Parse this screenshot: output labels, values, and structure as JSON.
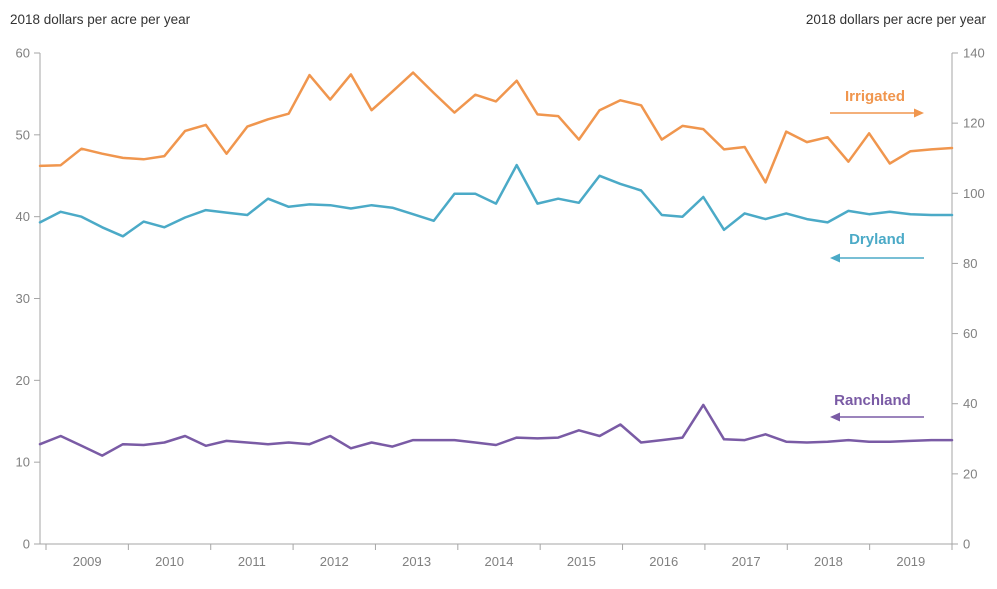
{
  "left_axis": {
    "title": "2018 dollars per acre per year",
    "ticks": [
      0,
      10,
      20,
      30,
      40,
      50,
      60
    ],
    "min": 0,
    "max": 60
  },
  "right_axis": {
    "title": "2018 dollars per acre per year",
    "ticks": [
      0,
      20,
      40,
      60,
      80,
      100,
      120,
      140
    ],
    "min": 0,
    "max": 140
  },
  "x_axis": {
    "year_labels": [
      "2009",
      "2010",
      "2011",
      "2012",
      "2013",
      "2014",
      "2015",
      "2016",
      "2017",
      "2018",
      "2019"
    ]
  },
  "colors": {
    "irrigated": "#F0964E",
    "dryland": "#4BAAC7",
    "ranchland": "#7A5BA5",
    "axis_line": "#A6A6A6",
    "tick_label": "#808080",
    "title_text": "#333333"
  },
  "chart_data": {
    "type": "line",
    "periodicity": "quarterly",
    "x_range": [
      "2009-Q1",
      "2020-Q1"
    ],
    "grid": false,
    "legend_position": "inline-arrow-annotations",
    "series": [
      {
        "name": "Irrigated",
        "axis": "right",
        "color": "#F0964E",
        "arrow_direction": "right",
        "values": [
          107.8,
          108.0,
          112.7,
          111.3,
          110.1,
          109.7,
          110.6,
          117.8,
          119.5,
          111.3,
          119.0,
          121.1,
          122.7,
          133.7,
          126.7,
          133.9,
          123.7,
          129.0,
          134.4,
          128.6,
          123.0,
          128.1,
          126.2,
          132.1,
          122.5,
          122.0,
          115.3,
          123.7,
          126.5,
          125.1,
          115.3,
          119.2,
          118.3,
          112.5,
          113.2,
          103.1,
          117.6,
          114.6,
          116.0,
          109.0,
          117.1,
          108.5,
          112.0,
          112.5,
          112.9
        ]
      },
      {
        "name": "Dryland",
        "axis": "left",
        "color": "#4BAAC7",
        "arrow_direction": "left",
        "values": [
          39.3,
          40.6,
          40.0,
          38.7,
          37.6,
          39.4,
          38.7,
          39.9,
          40.8,
          40.5,
          40.2,
          42.2,
          41.2,
          41.5,
          41.4,
          41.0,
          41.4,
          41.1,
          40.3,
          39.5,
          42.8,
          42.8,
          41.6,
          46.3,
          41.6,
          42.2,
          41.7,
          45.0,
          44.0,
          43.2,
          40.2,
          40.0,
          42.4,
          38.4,
          40.4,
          39.7,
          40.4,
          39.7,
          39.3,
          40.7,
          40.3,
          40.6,
          40.3,
          40.2,
          40.2
        ]
      },
      {
        "name": "Ranchland",
        "axis": "left",
        "color": "#7A5BA5",
        "arrow_direction": "left",
        "values": [
          12.2,
          13.2,
          12.0,
          10.8,
          12.2,
          12.1,
          12.4,
          13.2,
          12.0,
          12.6,
          12.4,
          12.2,
          12.4,
          12.2,
          13.2,
          11.7,
          12.4,
          11.9,
          12.7,
          12.7,
          12.7,
          12.4,
          12.1,
          13.0,
          12.9,
          13.0,
          13.9,
          13.2,
          14.6,
          12.4,
          12.7,
          13.0,
          17.0,
          12.8,
          12.7,
          13.4,
          12.5,
          12.4,
          12.5,
          12.7,
          12.5,
          12.5,
          12.6,
          12.7,
          12.7
        ]
      }
    ]
  }
}
